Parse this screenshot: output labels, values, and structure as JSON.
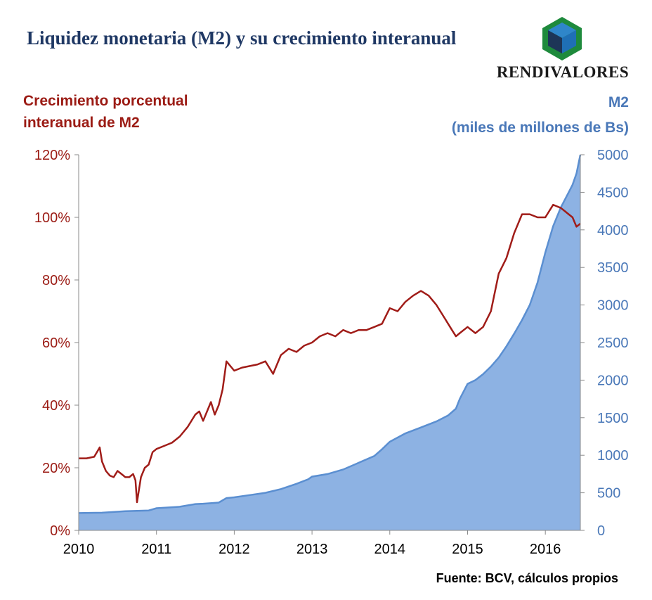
{
  "title": "Liquidez monetaria (M2) y su crecimiento interanual",
  "logo": {
    "text": "RENDIVALORES",
    "colors": {
      "green": "#1e8a3c",
      "blue": "#1f6fb5",
      "dark": "#1d3557"
    }
  },
  "source": "Fuente: BCV, cálculos propios",
  "chart_data": {
    "type": "line",
    "left_axis_label": "Crecimiento porcentual interanual de M2",
    "right_axis_label_line1": "M2",
    "right_axis_label_line2": "(miles de millones de Bs)",
    "x_ticks": [
      "2010",
      "2011",
      "2012",
      "2013",
      "2014",
      "2015",
      "2016"
    ],
    "x_range": [
      2010,
      2016.45
    ],
    "y_left_ticks": [
      "0%",
      "20%",
      "40%",
      "60%",
      "80%",
      "100%",
      "120%"
    ],
    "y_left_range": [
      0,
      120
    ],
    "y_right_ticks": [
      "0",
      "500",
      "1000",
      "1500",
      "2000",
      "2500",
      "3000",
      "3500",
      "4000",
      "4500",
      "5000"
    ],
    "y_right_range": [
      0,
      5000
    ],
    "grid": false,
    "colors": {
      "growth": "#a01c18",
      "m2_fill": "#8db2e3",
      "m2_line": "#5b8fd1"
    },
    "series": [
      {
        "type": "line",
        "axis": "left",
        "x": [
          2010.0,
          2010.1,
          2010.2,
          2010.27,
          2010.3,
          2010.35,
          2010.4,
          2010.45,
          2010.5,
          2010.55,
          2010.6,
          2010.65,
          2010.7,
          2010.73,
          2010.75,
          2010.8,
          2010.85,
          2010.9,
          2010.95,
          2011.0,
          2011.1,
          2011.2,
          2011.3,
          2011.4,
          2011.5,
          2011.55,
          2011.6,
          2011.65,
          2011.7,
          2011.75,
          2011.8,
          2011.85,
          2011.9,
          2012.0,
          2012.1,
          2012.2,
          2012.3,
          2012.4,
          2012.5,
          2012.6,
          2012.7,
          2012.8,
          2012.9,
          2013.0,
          2013.1,
          2013.2,
          2013.3,
          2013.4,
          2013.5,
          2013.6,
          2013.7,
          2013.8,
          2013.9,
          2014.0,
          2014.1,
          2014.2,
          2014.3,
          2014.4,
          2014.5,
          2014.6,
          2014.7,
          2014.8,
          2014.85,
          2014.9,
          2015.0,
          2015.1,
          2015.2,
          2015.3,
          2015.4,
          2015.5,
          2015.6,
          2015.7,
          2015.8,
          2015.9,
          2016.0,
          2016.05,
          2016.1,
          2016.15,
          2016.2,
          2016.25,
          2016.3,
          2016.35,
          2016.4,
          2016.45
        ],
        "values": [
          23,
          23,
          23.5,
          26.5,
          22,
          19,
          17.5,
          17,
          19,
          18,
          17,
          17,
          18,
          16,
          9,
          17,
          20,
          21,
          25,
          26,
          27,
          28,
          30,
          33,
          37,
          38,
          35,
          38,
          41,
          37,
          40,
          45,
          54,
          51,
          52,
          52.5,
          53,
          54,
          50,
          56,
          58,
          57,
          59,
          60,
          62,
          63,
          62,
          64,
          63,
          64,
          64,
          65,
          66,
          71,
          70,
          73,
          75,
          76.5,
          75,
          72,
          68,
          64,
          62,
          63,
          65,
          63,
          65,
          70,
          82,
          87,
          95,
          101,
          101,
          100,
          100,
          102,
          104,
          103.5,
          103,
          102,
          101,
          100,
          97,
          98
        ]
      },
      {
        "type": "area",
        "axis": "right",
        "x": [
          2010.0,
          2010.3,
          2010.6,
          2010.9,
          2011.0,
          2011.3,
          2011.5,
          2011.6,
          2011.8,
          2011.9,
          2012.0,
          2012.2,
          2012.4,
          2012.6,
          2012.8,
          2012.95,
          2013.0,
          2013.2,
          2013.4,
          2013.6,
          2013.8,
          2013.9,
          2014.0,
          2014.2,
          2014.4,
          2014.6,
          2014.75,
          2014.85,
          2014.9,
          2015.0,
          2015.1,
          2015.2,
          2015.3,
          2015.4,
          2015.5,
          2015.6,
          2015.7,
          2015.8,
          2015.9,
          2016.0,
          2016.1,
          2016.2,
          2016.3,
          2016.35,
          2016.4,
          2016.45
        ],
        "values": [
          230,
          235,
          255,
          265,
          295,
          315,
          350,
          355,
          370,
          430,
          440,
          470,
          500,
          550,
          620,
          680,
          715,
          750,
          810,
          900,
          990,
          1080,
          1180,
          1290,
          1370,
          1450,
          1530,
          1620,
          1750,
          1950,
          2000,
          2080,
          2180,
          2300,
          2450,
          2620,
          2800,
          3000,
          3300,
          3700,
          4050,
          4300,
          4500,
          4600,
          4750,
          5000
        ]
      }
    ]
  }
}
